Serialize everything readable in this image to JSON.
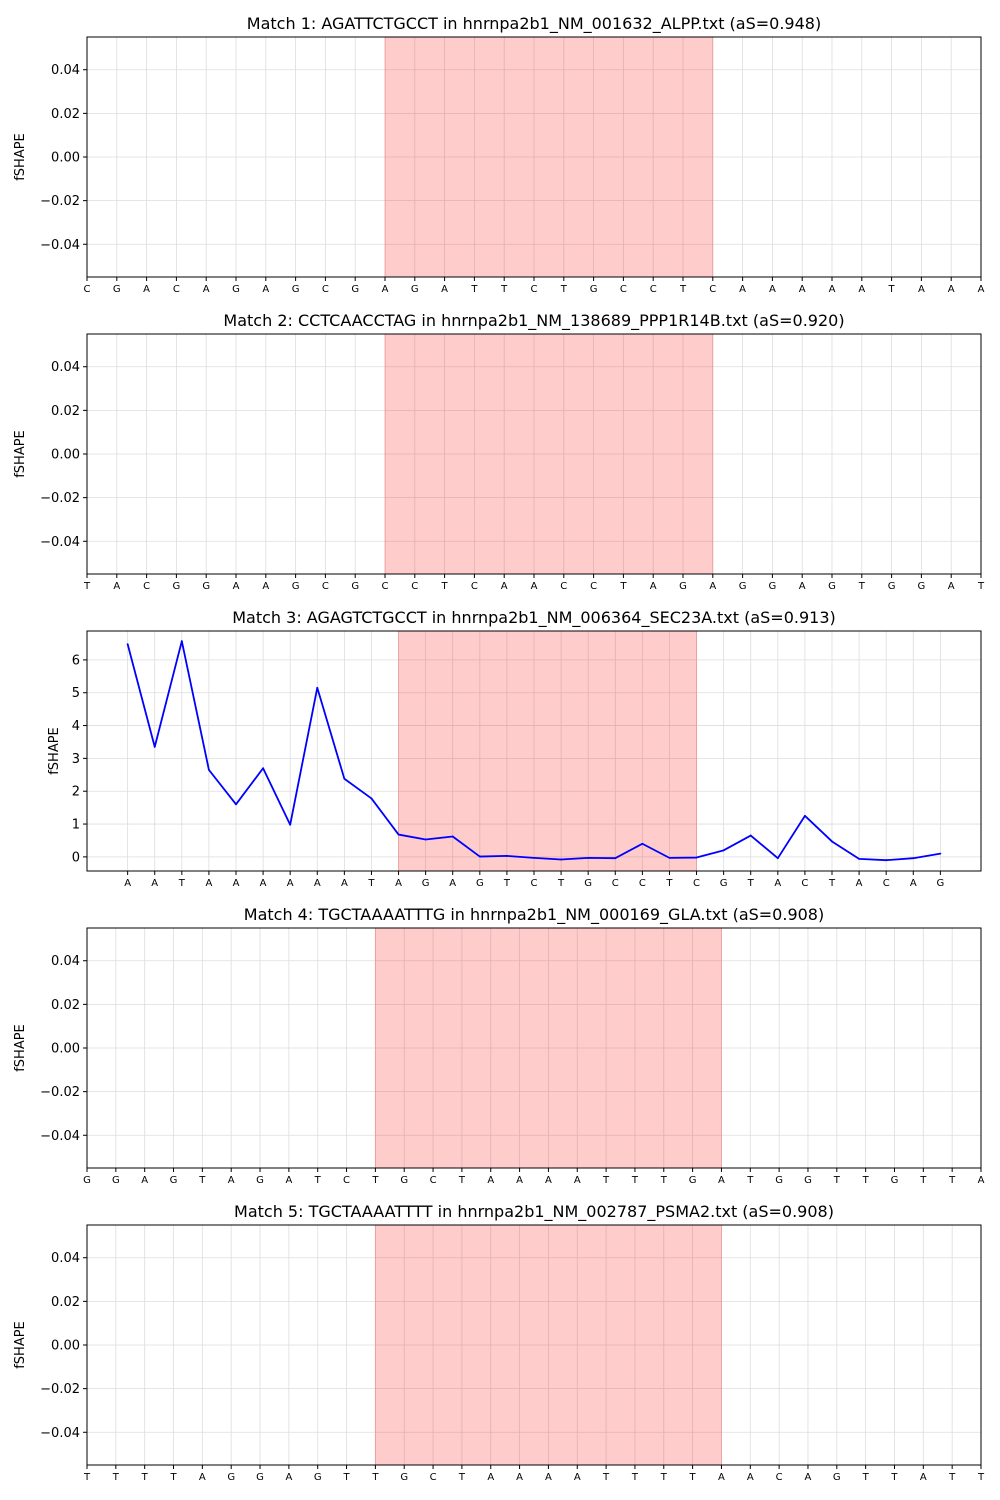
{
  "chart_data": [
    {
      "type": "line",
      "title": "Match 1: AGATTCTGCCT in hnrnpa2b1_NM_001632_ALPP.txt (aS=0.948)",
      "ylabel": "fSHAPE",
      "xlabel": "",
      "sequence": [
        "C",
        "G",
        "A",
        "C",
        "A",
        "G",
        "A",
        "G",
        "C",
        "G",
        "A",
        "G",
        "A",
        "T",
        "T",
        "C",
        "T",
        "G",
        "C",
        "C",
        "T",
        "C",
        "A",
        "A",
        "A",
        "A",
        "A",
        "T",
        "A",
        "A",
        "A"
      ],
      "ylim": [
        -0.055,
        0.055
      ],
      "yticks": [
        0.04,
        0.02,
        0.0,
        -0.02,
        -0.04
      ],
      "ytick_labels": [
        "0.04",
        "0.02",
        "0.00",
        "−0.02",
        "−0.04"
      ],
      "highlight": [
        10,
        21
      ],
      "series": [],
      "grid": true
    },
    {
      "type": "line",
      "title": "Match 2: CCTCAACCTAG in hnrnpa2b1_NM_138689_PPP1R14B.txt (aS=0.920)",
      "ylabel": "fSHAPE",
      "xlabel": "",
      "sequence": [
        "T",
        "A",
        "C",
        "G",
        "G",
        "A",
        "A",
        "G",
        "C",
        "G",
        "C",
        "C",
        "T",
        "C",
        "A",
        "A",
        "C",
        "C",
        "T",
        "A",
        "G",
        "A",
        "G",
        "G",
        "A",
        "G",
        "T",
        "G",
        "G",
        "A",
        "T"
      ],
      "ylim": [
        -0.055,
        0.055
      ],
      "yticks": [
        0.04,
        0.02,
        0.0,
        -0.02,
        -0.04
      ],
      "ytick_labels": [
        "0.04",
        "0.02",
        "0.00",
        "−0.02",
        "−0.04"
      ],
      "highlight": [
        10,
        21
      ],
      "series": [],
      "grid": true
    },
    {
      "type": "line",
      "title": "Match 3: AGAGTCTGCCT in hnrnpa2b1_NM_006364_SEC23A.txt (aS=0.913)",
      "ylabel": "fSHAPE",
      "xlabel": "",
      "sequence": [
        "A",
        "A",
        "T",
        "A",
        "A",
        "A",
        "A",
        "A",
        "A",
        "T",
        "A",
        "G",
        "A",
        "G",
        "T",
        "C",
        "T",
        "G",
        "C",
        "C",
        "T",
        "C",
        "G",
        "T",
        "A",
        "C",
        "T",
        "A",
        "C",
        "A",
        "G"
      ],
      "ylim": [
        -0.43,
        6.88
      ],
      "xlim": [
        -1.5,
        31.5
      ],
      "yticks": [
        6,
        5,
        4,
        3,
        2,
        1,
        0
      ],
      "ytick_labels": [
        "6",
        "5",
        "4",
        "3",
        "2",
        "1",
        "0"
      ],
      "highlight": [
        10,
        21
      ],
      "series": [
        {
          "color": "#0000ff",
          "values": [
            6.48,
            3.35,
            6.57,
            2.65,
            1.6,
            2.7,
            0.98,
            5.15,
            2.38,
            1.78,
            0.68,
            0.53,
            0.62,
            0.01,
            0.03,
            -0.03,
            -0.08,
            -0.03,
            -0.04,
            0.4,
            -0.03,
            -0.02,
            0.2,
            0.65,
            -0.04,
            1.25,
            0.47,
            -0.06,
            -0.1,
            -0.04,
            0.1
          ]
        }
      ],
      "grid": true
    },
    {
      "type": "line",
      "title": "Match 4: TGCTAAAATTTG in hnrnpa2b1_NM_000169_GLA.txt (aS=0.908)",
      "ylabel": "fSHAPE",
      "xlabel": "",
      "sequence": [
        "G",
        "G",
        "A",
        "G",
        "T",
        "A",
        "G",
        "A",
        "T",
        "C",
        "T",
        "G",
        "C",
        "T",
        "A",
        "A",
        "A",
        "A",
        "T",
        "T",
        "T",
        "G",
        "A",
        "T",
        "G",
        "G",
        "T",
        "T",
        "G",
        "T",
        "T",
        "A"
      ],
      "ylim": [
        -0.055,
        0.055
      ],
      "yticks": [
        0.04,
        0.02,
        0.0,
        -0.02,
        -0.04
      ],
      "ytick_labels": [
        "0.04",
        "0.02",
        "0.00",
        "−0.02",
        "−0.04"
      ],
      "highlight": [
        10,
        22
      ],
      "series": [],
      "grid": true
    },
    {
      "type": "line",
      "title": "Match 5: TGCTAAAATTTT in hnrnpa2b1_NM_002787_PSMA2.txt (aS=0.908)",
      "ylabel": "fSHAPE",
      "xlabel": "",
      "sequence": [
        "T",
        "T",
        "T",
        "T",
        "A",
        "G",
        "G",
        "A",
        "G",
        "T",
        "T",
        "G",
        "C",
        "T",
        "A",
        "A",
        "A",
        "A",
        "T",
        "T",
        "T",
        "T",
        "A",
        "A",
        "C",
        "A",
        "G",
        "T",
        "T",
        "A",
        "T",
        "T"
      ],
      "ylim": [
        -0.055,
        0.055
      ],
      "yticks": [
        0.04,
        0.02,
        0.0,
        -0.02,
        -0.04
      ],
      "ytick_labels": [
        "0.04",
        "0.02",
        "0.00",
        "−0.02",
        "−0.04"
      ],
      "highlight": [
        10,
        22
      ],
      "series": [],
      "grid": true
    }
  ]
}
